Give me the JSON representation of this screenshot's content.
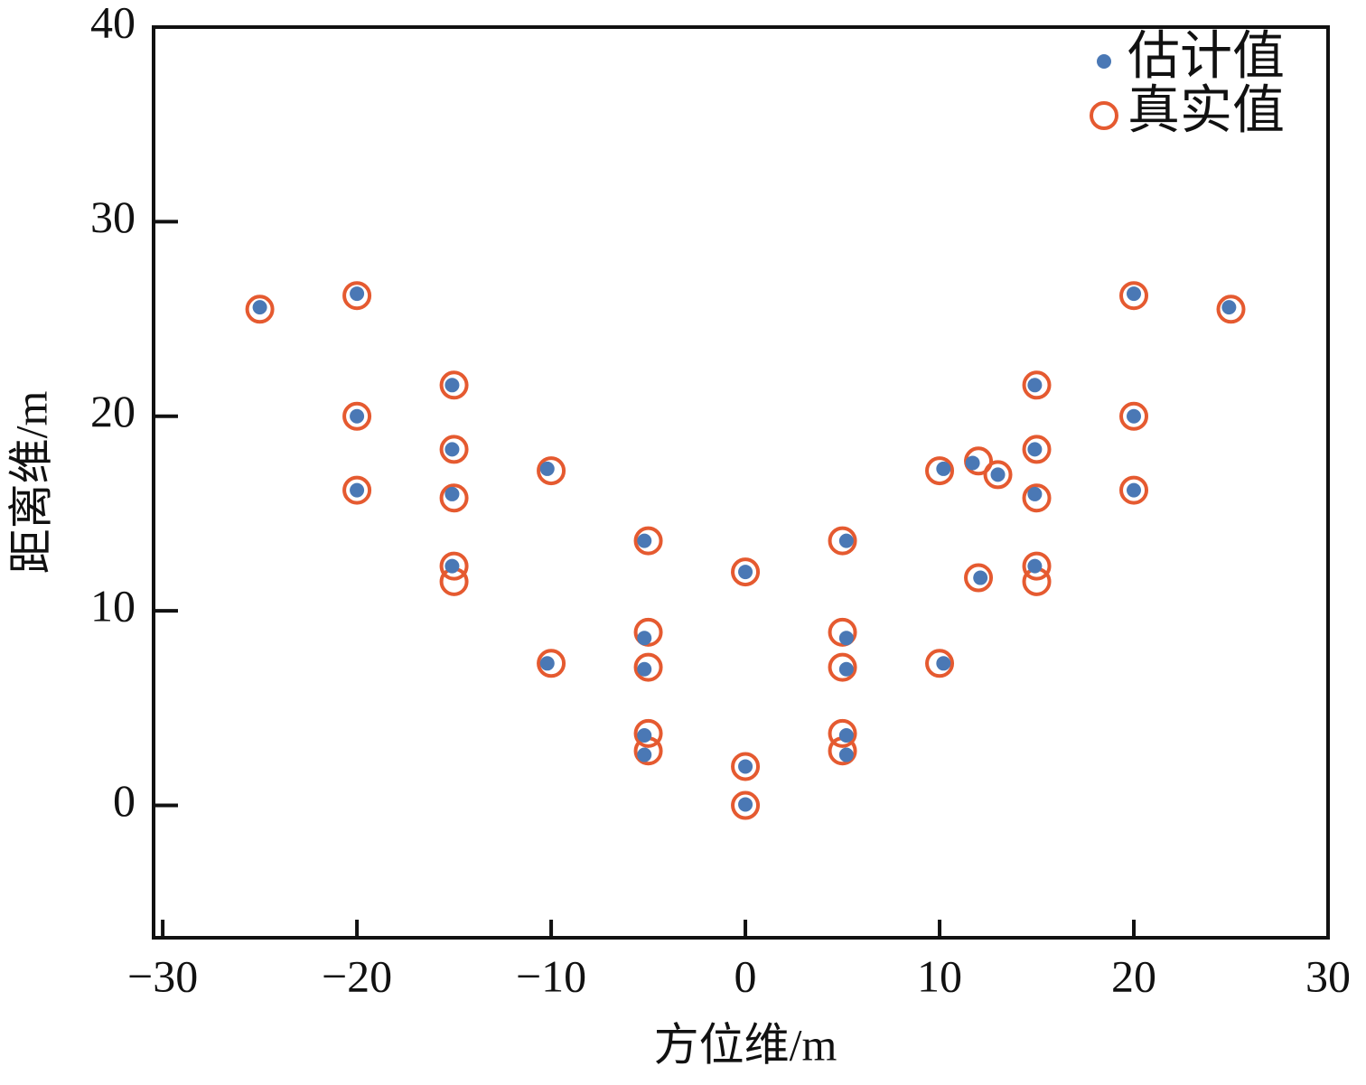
{
  "chart_data": {
    "type": "scatter",
    "xlabel": "方位维/m",
    "ylabel": "距离维/m",
    "xlim": [
      -30.47,
      30
    ],
    "ylim": [
      -6.8,
      40
    ],
    "xticks": [
      {
        "value": -30,
        "label": "−30"
      },
      {
        "value": -20,
        "label": "−20"
      },
      {
        "value": -10,
        "label": "−10"
      },
      0,
      10,
      20,
      30
    ],
    "yticks": [
      0,
      10,
      20,
      30,
      40
    ],
    "legend": "upper-right",
    "series": [
      {
        "name": "真实值",
        "color": "#e55a30",
        "marker": "hollow",
        "x": [
          -25,
          -20,
          -20,
          -20,
          -15,
          -15,
          -15,
          -15,
          -15,
          -10,
          -10,
          -5,
          -5,
          -5,
          -5,
          -5,
          0,
          0,
          0,
          5,
          5,
          5,
          5,
          5,
          10,
          10,
          12,
          13,
          12,
          15,
          15,
          15,
          15,
          15,
          20,
          20,
          20,
          25
        ],
        "y": [
          25.5,
          26.2,
          20,
          16.2,
          21.6,
          18.3,
          15.8,
          12.3,
          11.5,
          17.2,
          7.3,
          13.6,
          8.9,
          7.1,
          3.7,
          2.8,
          12,
          2,
          0,
          13.6,
          8.9,
          7.1,
          3.7,
          2.8,
          17.2,
          7.3,
          17.7,
          17,
          11.7,
          21.6,
          18.3,
          15.8,
          12.3,
          11.5,
          26.2,
          20,
          16.2,
          25.5
        ]
      },
      {
        "name": "估计值",
        "color": "#4a78b5",
        "marker": "filled",
        "x": [
          -25,
          -20,
          -20,
          -20,
          -15.1,
          -15.1,
          -15.1,
          -15.1,
          -10.2,
          -10.2,
          -5.2,
          -5.2,
          -5.2,
          -5.2,
          -5.2,
          0,
          0,
          0,
          5.2,
          5.2,
          5.2,
          5.2,
          5.2,
          10.2,
          10.2,
          11.7,
          13,
          12.1,
          14.9,
          14.9,
          14.9,
          14.9,
          20,
          20,
          20,
          24.9
        ],
        "y": [
          25.6,
          26.3,
          20,
          16.2,
          21.6,
          18.3,
          16,
          12.3,
          17.3,
          7.3,
          13.6,
          8.6,
          7,
          3.6,
          2.6,
          12,
          2,
          0.05,
          13.6,
          8.6,
          7,
          3.6,
          2.6,
          17.3,
          7.3,
          17.6,
          17,
          11.7,
          21.6,
          18.3,
          16,
          12.3,
          26.3,
          20,
          16.2,
          25.6
        ]
      }
    ]
  }
}
